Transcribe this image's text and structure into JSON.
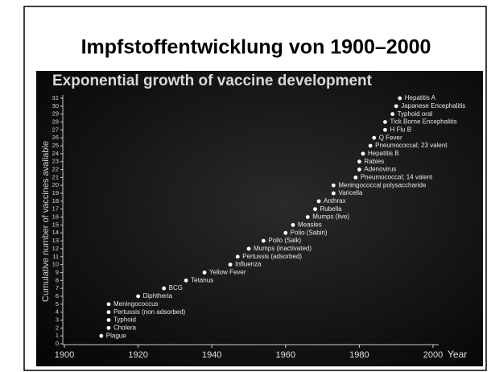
{
  "slide_title": "Impfstoffentwicklung von 1900–2000",
  "chart_data": {
    "type": "scatter",
    "title": "Exponential growth of vaccine development",
    "x_label": "Year",
    "y_label": "Cumulative number of vaccines available",
    "x": [
      1910,
      1912,
      1912,
      1912,
      1912,
      1920,
      1927,
      1933,
      1938,
      1945,
      1947,
      1950,
      1954,
      1960,
      1962,
      1966,
      1968,
      1969,
      1973,
      1973,
      1979,
      1980,
      1980,
      1981,
      1983,
      1984,
      1987,
      1987,
      1989,
      1990,
      1991
    ],
    "values": [
      1,
      2,
      3,
      4,
      5,
      6,
      7,
      8,
      9,
      10,
      11,
      12,
      13,
      14,
      15,
      16,
      17,
      18,
      19,
      20,
      21,
      22,
      23,
      24,
      25,
      26,
      27,
      28,
      29,
      30,
      31
    ],
    "labels": [
      "Plague",
      "Cholera",
      "Typhoid",
      "Pertussis (non adsorbed)",
      "Meningococcus",
      "Diphtheria",
      "BCG",
      "Tetanus",
      "Yellow Fever",
      "Influenza",
      "Pertussis (adsorbed)",
      "Mumps (inactivated)",
      "Polio (Salk)",
      "Polio (Sabin)",
      "Measles",
      "Mumps (live)",
      "Rubella",
      "Anthrax",
      "Varicella",
      "Meningococcal polysaccharide",
      "Pneumococcal; 14 valent",
      "Adenovirus",
      "Rabies",
      "Hepatitis B",
      "Pneumococcal; 23 valent",
      "Q Fever",
      "H Flu B",
      "Tick Borne Encephalitis",
      "Typhoid oral",
      "Japanese Encephalitis",
      "Hepatitis A"
    ],
    "color": "#ffffff",
    "xlim": [
      1900,
      2000
    ],
    "xticks": [
      1900,
      1920,
      1940,
      1960,
      1980,
      2000
    ],
    "ylim": [
      0,
      31
    ],
    "yticks": [
      0,
      1,
      2,
      3,
      4,
      5,
      6,
      7,
      8,
      9,
      10,
      11,
      12,
      13,
      14,
      15,
      16,
      17,
      18,
      19,
      20,
      21,
      22,
      23,
      24,
      25,
      26,
      27,
      28,
      29,
      30,
      31
    ]
  }
}
